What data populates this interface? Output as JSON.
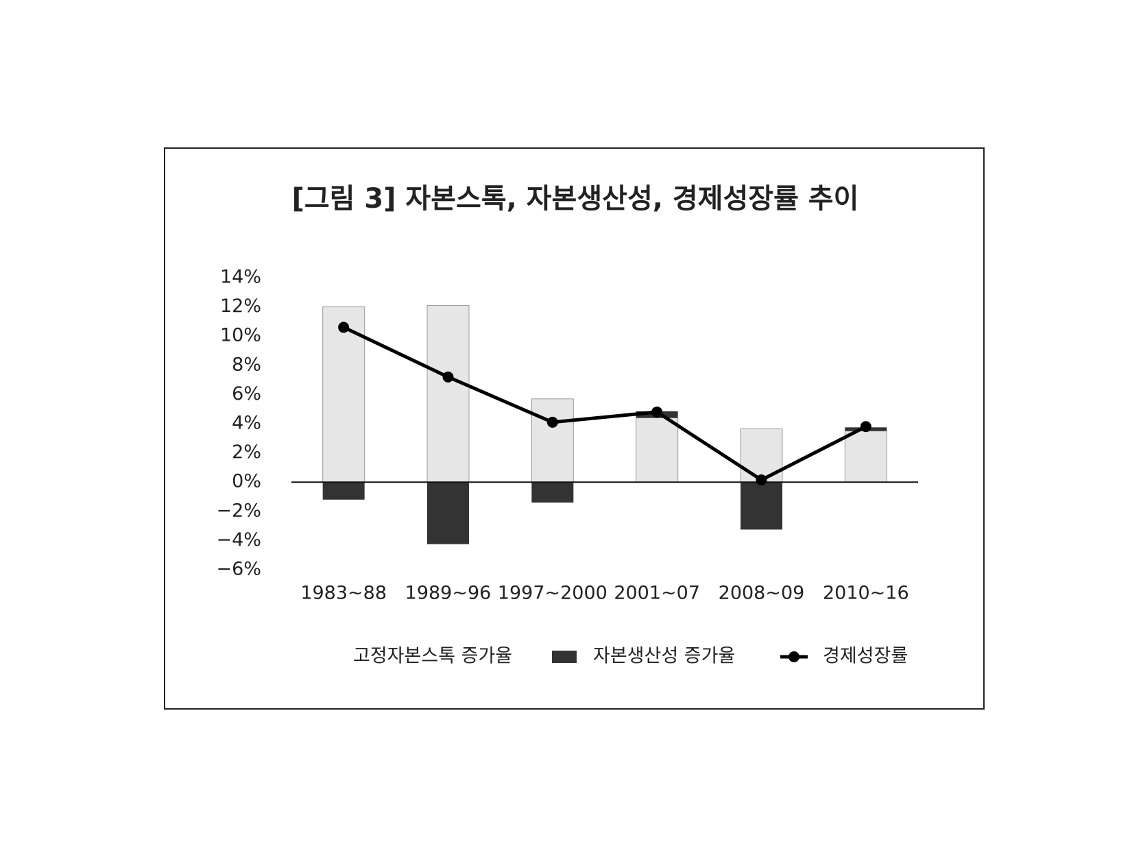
{
  "chart_data": {
    "type": "bar-line",
    "title": "[그림 3] 자본스톡, 자본생산성, 경제성장률 추이",
    "categories": [
      "1983~88",
      "1989~96",
      "1997~2000",
      "2001~07",
      "2008~09",
      "2010~16"
    ],
    "series": [
      {
        "name": "고정자본스톡 증가율",
        "type": "bar",
        "color": "#e6e6e6",
        "values": [
          12.0,
          12.1,
          5.7,
          4.4,
          3.65,
          3.5
        ]
      },
      {
        "name": "자본생산성 증가율",
        "type": "bar",
        "color": "#333333",
        "values": [
          -1.2,
          -4.25,
          -1.4,
          0.45,
          -3.25,
          0.25
        ]
      },
      {
        "name": "경제성장률",
        "type": "line",
        "color": "#000000",
        "values": [
          10.6,
          7.2,
          4.1,
          4.8,
          0.15,
          3.8
        ]
      }
    ],
    "ylim": [
      -6,
      14
    ],
    "yticks": [
      {
        "value": 14,
        "label": "14%"
      },
      {
        "value": 12,
        "label": "12%"
      },
      {
        "value": 10,
        "label": "10%"
      },
      {
        "value": 8,
        "label": "8%"
      },
      {
        "value": 6,
        "label": "6%"
      },
      {
        "value": 4,
        "label": "4%"
      },
      {
        "value": 2,
        "label": "2%"
      },
      {
        "value": 0,
        "label": "0%"
      },
      {
        "value": -2,
        "label": "−2%"
      },
      {
        "value": -4,
        "label": "−4%"
      },
      {
        "value": -6,
        "label": "−6%"
      }
    ],
    "grid": false
  }
}
